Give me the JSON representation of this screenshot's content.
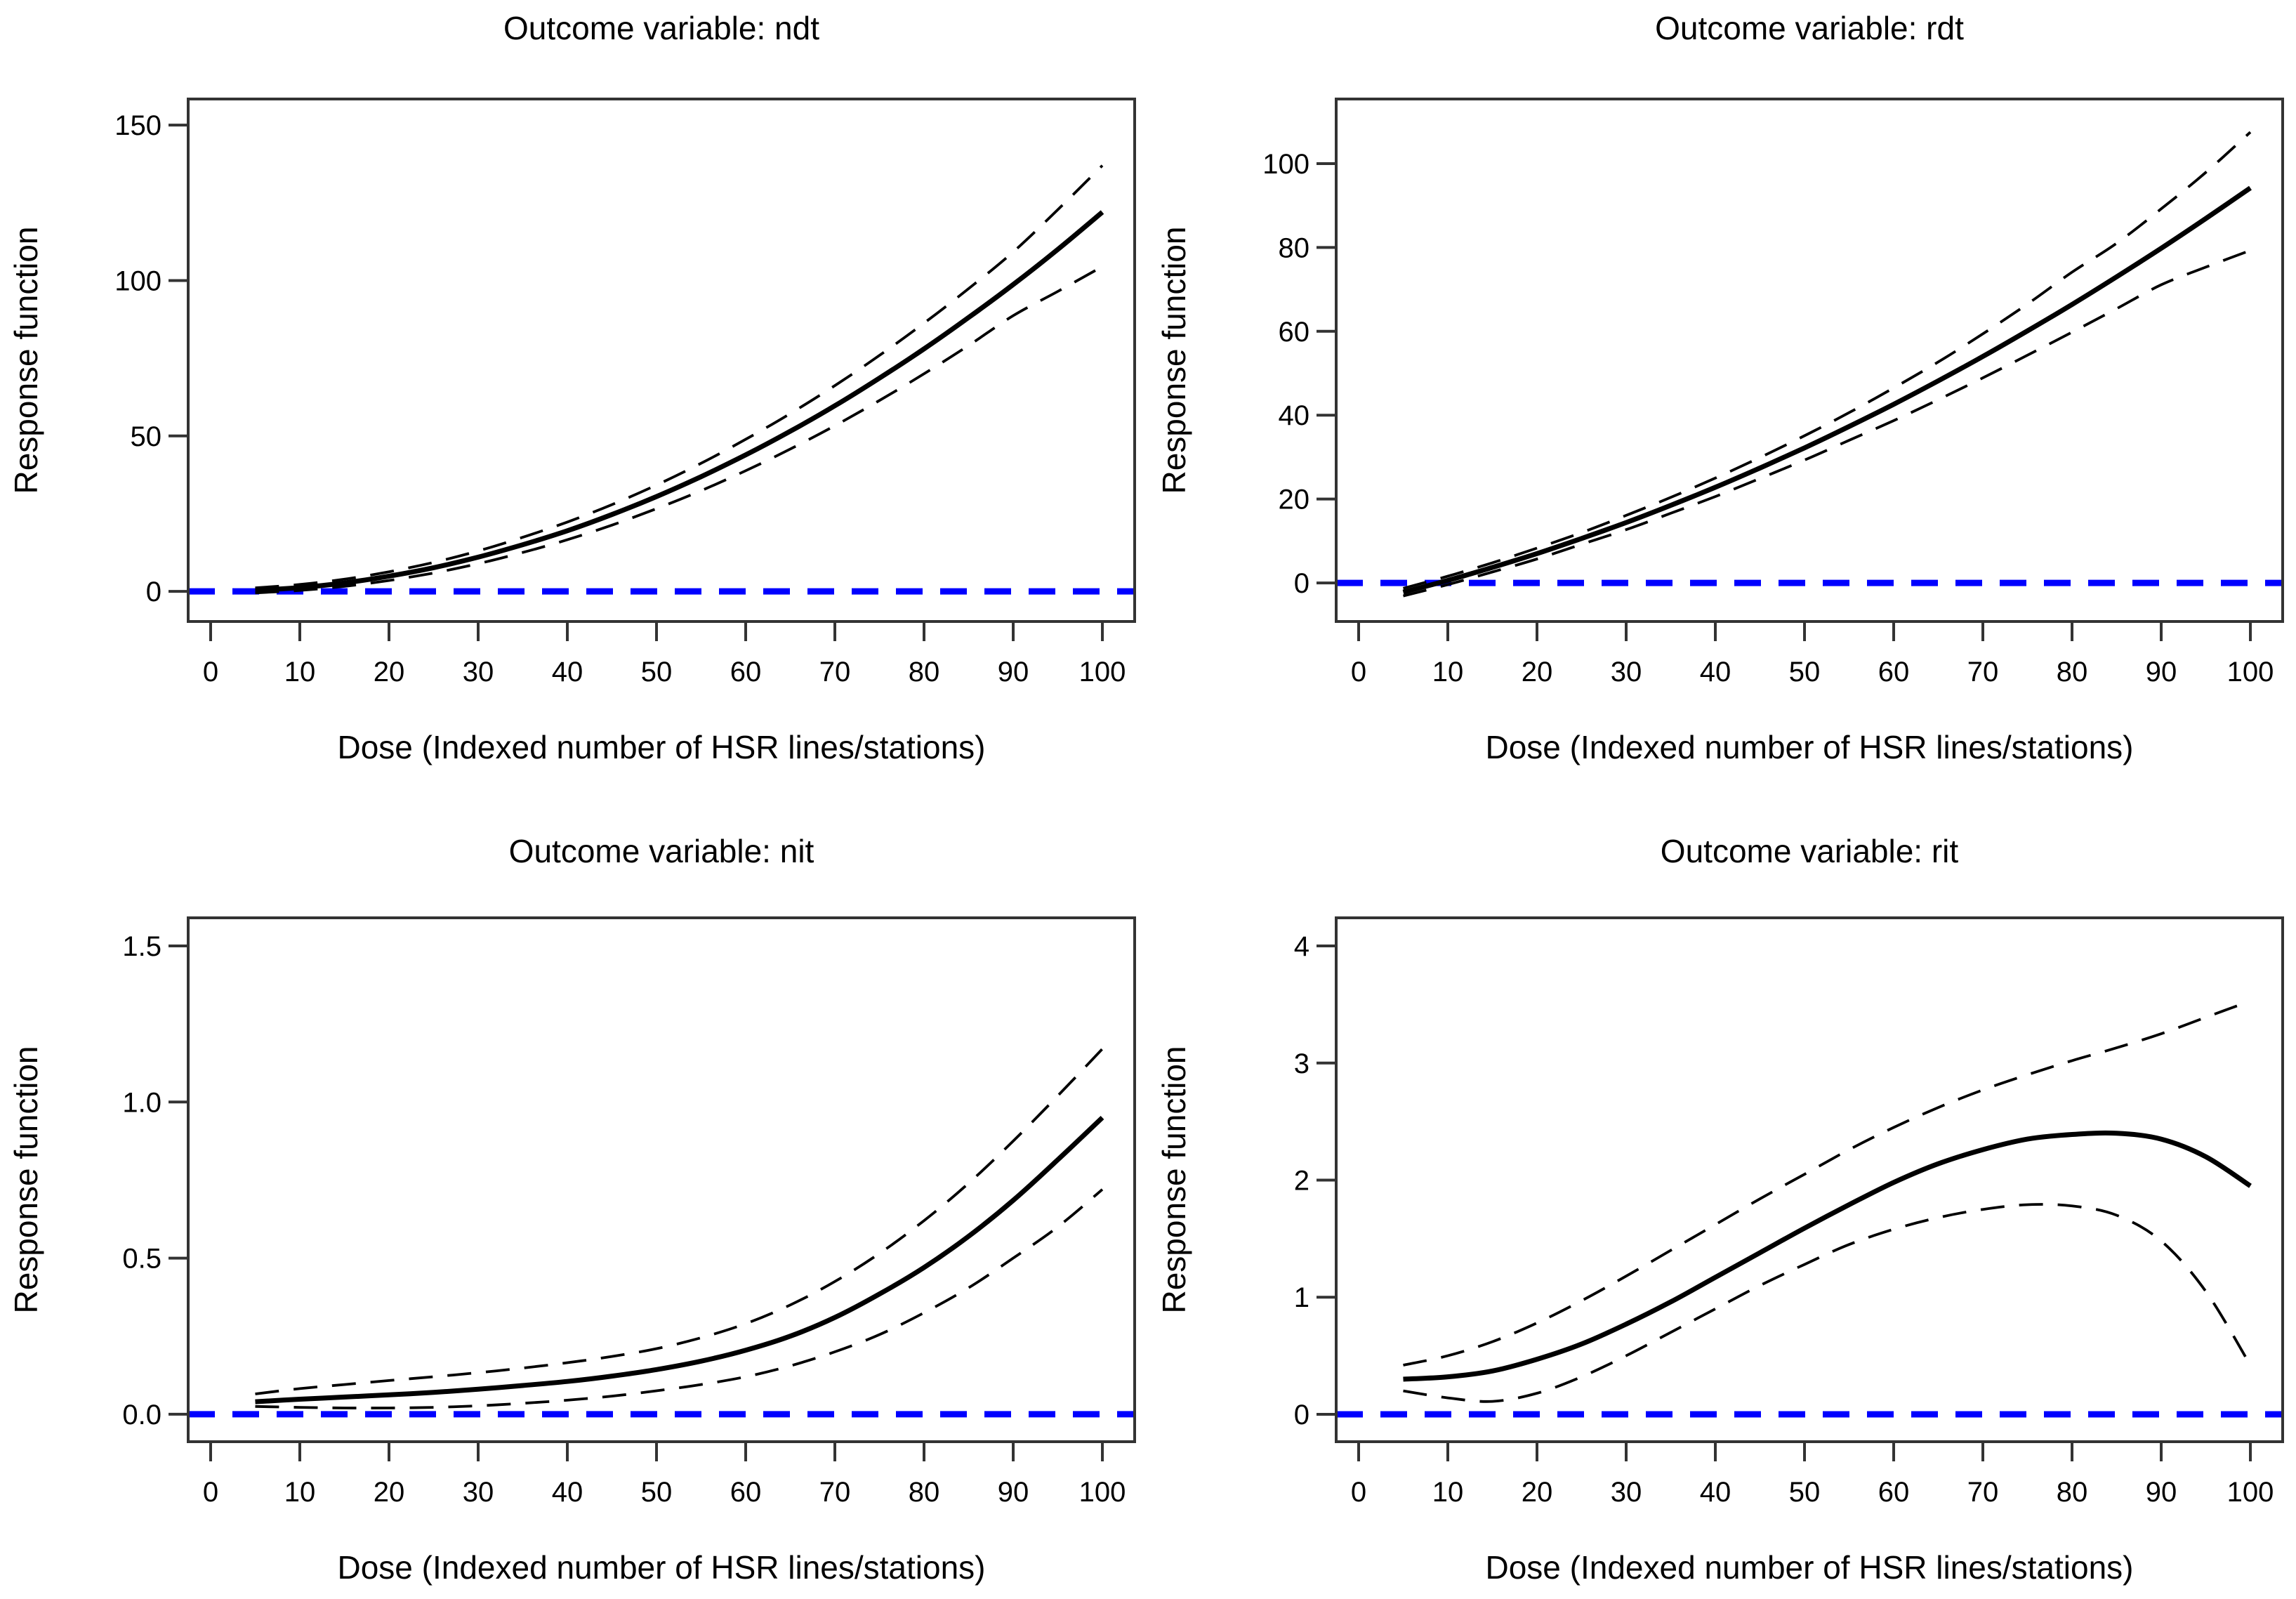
{
  "figure": {
    "background": "#ffffff",
    "frame_color": "#333333",
    "curve_color": "#000000",
    "zero_line_color": "#0000ff"
  },
  "chart_data": [
    {
      "type": "line",
      "title": "Outcome variable: ndt",
      "xlabel": "Dose (Indexed number of HSR lines/stations)",
      "ylabel": "Response function",
      "x_axis": {
        "tick_values": [
          0,
          10,
          20,
          30,
          40,
          50,
          60,
          70,
          80,
          90,
          100
        ],
        "tick_labels": [
          "0",
          "10",
          "20",
          "30",
          "40",
          "50",
          "60",
          "70",
          "80",
          "90",
          "100"
        ],
        "range": [
          -2.52,
          103.62
        ]
      },
      "y_axis": {
        "tick_values": [
          0,
          50,
          100,
          150
        ],
        "tick_labels": [
          "0",
          "50",
          "100",
          "150"
        ],
        "range": [
          -9.7,
          158.4
        ]
      },
      "zero_reference": 0,
      "x": [
        5,
        10,
        15,
        20,
        25,
        30,
        35,
        40,
        45,
        50,
        55,
        60,
        65,
        70,
        75,
        80,
        85,
        90,
        95,
        100
      ],
      "series": [
        {
          "name": "estimate",
          "style": "solid",
          "values": [
            0.3,
            1.2,
            2.7,
            4.9,
            7.6,
            11.0,
            15.0,
            19.5,
            24.7,
            30.5,
            36.9,
            43.9,
            51.5,
            59.7,
            68.6,
            78.0,
            88.1,
            98.7,
            110.0,
            122.0
          ]
        },
        {
          "name": "upper_ci",
          "style": "dashed",
          "values": [
            1.1,
            2.2,
            3.9,
            6.3,
            9.3,
            13.0,
            17.4,
            22.3,
            27.9,
            34.2,
            41.2,
            48.9,
            57.2,
            66.2,
            75.9,
            86.3,
            97.4,
            109.2,
            122.8,
            137.0
          ]
        },
        {
          "name": "lower_ci",
          "style": "dashed",
          "values": [
            -0.5,
            0.3,
            1.6,
            3.5,
            5.9,
            8.9,
            12.5,
            16.6,
            21.3,
            26.6,
            32.4,
            38.8,
            45.8,
            53.3,
            61.4,
            70.0,
            79.1,
            88.7,
            96.5,
            104.5
          ]
        }
      ]
    },
    {
      "type": "line",
      "title": "Outcome variable: rdt",
      "xlabel": "Dose (Indexed number of HSR lines/stations)",
      "ylabel": "Response function",
      "x_axis": {
        "tick_values": [
          0,
          10,
          20,
          30,
          40,
          50,
          60,
          70,
          80,
          90,
          100
        ],
        "tick_labels": [
          "0",
          "10",
          "20",
          "30",
          "40",
          "50",
          "60",
          "70",
          "80",
          "90",
          "100"
        ],
        "range": [
          -2.52,
          103.62
        ]
      },
      "y_axis": {
        "tick_values": [
          0,
          20,
          40,
          60,
          80,
          100
        ],
        "tick_labels": [
          "0",
          "20",
          "40",
          "60",
          "80",
          "100"
        ],
        "range": [
          -9.2,
          115.4
        ]
      },
      "zero_reference": 0,
      "x": [
        5,
        10,
        15,
        20,
        25,
        30,
        35,
        40,
        45,
        50,
        55,
        60,
        65,
        70,
        75,
        80,
        85,
        90,
        95,
        100
      ],
      "series": [
        {
          "name": "estimate",
          "style": "solid",
          "values": [
            -2.2,
            0.6,
            3.7,
            7.0,
            10.6,
            14.4,
            18.5,
            22.8,
            27.4,
            32.2,
            37.3,
            42.6,
            48.2,
            54.0,
            60.1,
            66.4,
            73.0,
            79.8,
            86.9,
            94.2
          ]
        },
        {
          "name": "upper_ci",
          "style": "dashed",
          "values": [
            -1.3,
            1.6,
            4.8,
            8.3,
            12.0,
            16.1,
            20.4,
            25.0,
            29.9,
            35.1,
            40.6,
            46.5,
            52.7,
            59.4,
            66.5,
            74.1,
            81.0,
            89.2,
            97.9,
            107.5
          ]
        },
        {
          "name": "lower_ci",
          "style": "dashed",
          "values": [
            -3.1,
            -0.4,
            2.6,
            5.7,
            9.2,
            12.7,
            16.6,
            20.6,
            24.9,
            29.3,
            34.0,
            38.7,
            43.7,
            48.9,
            54.3,
            59.8,
            65.4,
            71.1,
            75.3,
            79.3
          ]
        }
      ]
    },
    {
      "type": "line",
      "title": "Outcome variable: nit",
      "xlabel": "Dose (Indexed number of HSR lines/stations)",
      "ylabel": "Response function",
      "x_axis": {
        "tick_values": [
          0,
          10,
          20,
          30,
          40,
          50,
          60,
          70,
          80,
          90,
          100
        ],
        "tick_labels": [
          "0",
          "10",
          "20",
          "30",
          "40",
          "50",
          "60",
          "70",
          "80",
          "90",
          "100"
        ],
        "range": [
          -2.52,
          103.62
        ]
      },
      "y_axis": {
        "tick_values": [
          0.0,
          0.5,
          1.0,
          1.5
        ],
        "tick_labels": [
          "0.0",
          "0.5",
          "1.0",
          "1.5"
        ],
        "range": [
          -0.088,
          1.59
        ]
      },
      "zero_reference": 0,
      "x": [
        5,
        10,
        15,
        20,
        25,
        30,
        35,
        40,
        45,
        50,
        55,
        60,
        65,
        70,
        75,
        80,
        85,
        90,
        95,
        100
      ],
      "series": [
        {
          "name": "estimate",
          "style": "solid",
          "values": [
            0.04,
            0.048,
            0.055,
            0.062,
            0.07,
            0.08,
            0.092,
            0.105,
            0.122,
            0.143,
            0.17,
            0.205,
            0.25,
            0.31,
            0.385,
            0.47,
            0.57,
            0.685,
            0.815,
            0.95
          ]
        },
        {
          "name": "upper_ci",
          "style": "dashed",
          "values": [
            0.065,
            0.082,
            0.095,
            0.108,
            0.12,
            0.133,
            0.148,
            0.165,
            0.185,
            0.21,
            0.245,
            0.29,
            0.35,
            0.425,
            0.515,
            0.62,
            0.74,
            0.875,
            1.02,
            1.17
          ]
        },
        {
          "name": "lower_ci",
          "style": "dashed",
          "values": [
            0.025,
            0.022,
            0.02,
            0.02,
            0.022,
            0.027,
            0.035,
            0.045,
            0.058,
            0.075,
            0.095,
            0.12,
            0.155,
            0.2,
            0.255,
            0.325,
            0.405,
            0.5,
            0.6,
            0.72
          ]
        }
      ]
    },
    {
      "type": "line",
      "title": "Outcome variable: rit",
      "xlabel": "Dose (Indexed number of HSR lines/stations)",
      "ylabel": "Response function",
      "x_axis": {
        "tick_values": [
          0,
          10,
          20,
          30,
          40,
          50,
          60,
          70,
          80,
          90,
          100
        ],
        "tick_labels": [
          "0",
          "10",
          "20",
          "30",
          "40",
          "50",
          "60",
          "70",
          "80",
          "90",
          "100"
        ],
        "range": [
          -2.52,
          103.62
        ]
      },
      "y_axis": {
        "tick_values": [
          0,
          1,
          2,
          3,
          4
        ],
        "tick_labels": [
          "0",
          "1",
          "2",
          "3",
          "4"
        ],
        "range": [
          -0.234,
          4.24
        ]
      },
      "zero_reference": 0,
      "x": [
        5,
        10,
        15,
        20,
        25,
        30,
        35,
        40,
        45,
        50,
        55,
        60,
        65,
        70,
        75,
        80,
        85,
        90,
        95,
        100
      ],
      "series": [
        {
          "name": "estimate",
          "style": "solid",
          "values": [
            0.3,
            0.32,
            0.37,
            0.47,
            0.6,
            0.77,
            0.96,
            1.17,
            1.38,
            1.59,
            1.79,
            1.98,
            2.14,
            2.26,
            2.35,
            2.39,
            2.4,
            2.35,
            2.2,
            1.95
          ]
        },
        {
          "name": "upper_ci",
          "style": "dashed",
          "values": [
            0.42,
            0.5,
            0.62,
            0.78,
            0.97,
            1.18,
            1.4,
            1.62,
            1.84,
            2.05,
            2.26,
            2.45,
            2.62,
            2.77,
            2.9,
            3.02,
            3.13,
            3.25,
            3.39,
            3.53
          ]
        },
        {
          "name": "lower_ci",
          "style": "dashed",
          "values": [
            0.2,
            0.14,
            0.11,
            0.18,
            0.32,
            0.5,
            0.7,
            0.9,
            1.1,
            1.28,
            1.45,
            1.58,
            1.68,
            1.75,
            1.79,
            1.78,
            1.7,
            1.48,
            1.05,
            0.42
          ]
        }
      ]
    }
  ]
}
